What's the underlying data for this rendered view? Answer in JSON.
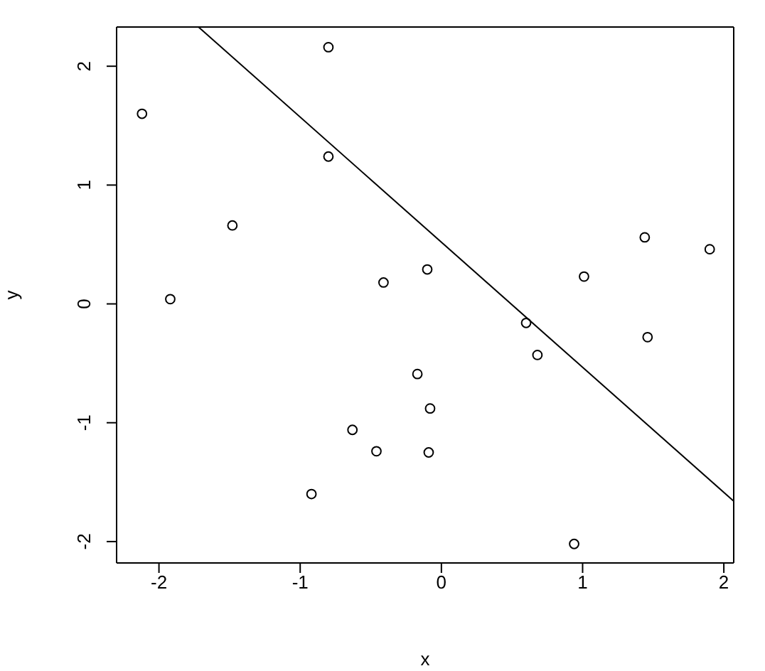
{
  "chart_data": {
    "type": "scatter",
    "xlabel": "x",
    "ylabel": "y",
    "xlim": [
      -2.3,
      2.07
    ],
    "ylim": [
      -2.18,
      2.33
    ],
    "xticks": [
      -2,
      -1,
      0,
      1,
      2
    ],
    "yticks": [
      -2,
      -1,
      0,
      1,
      2
    ],
    "marker": "circle",
    "series": [
      {
        "color": "#000000",
        "x": [
          -2.12,
          -1.92,
          -1.48,
          -0.8,
          -0.8,
          -0.92,
          -0.63,
          -0.46,
          -0.41,
          -0.17,
          -0.1,
          -0.08,
          -0.09,
          0.6,
          0.68,
          1.01,
          0.94,
          1.44,
          1.46,
          1.9
        ],
        "values": [
          1.6,
          0.04,
          0.66,
          2.16,
          1.24,
          -1.6,
          -1.06,
          -1.24,
          0.18,
          -0.59,
          0.29,
          -0.88,
          -1.25,
          -0.16,
          -0.43,
          0.23,
          -2.02,
          0.56,
          -0.28,
          0.46
        ]
      },
      {
        "type": "line",
        "color": "#000000",
        "x": [
          -1.72,
          2.07
        ],
        "values": [
          2.33,
          -1.66
        ],
        "marker": "none",
        "line_style": "solid"
      }
    ]
  }
}
